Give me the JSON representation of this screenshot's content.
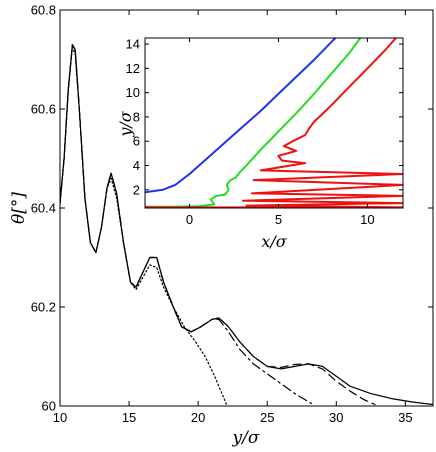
{
  "chart_data": [
    {
      "type": "line",
      "xlabel": "y/σ",
      "ylabel": "θ[°]",
      "xlim": [
        10,
        37
      ],
      "ylim": [
        60,
        60.8
      ],
      "xticks": [
        "10",
        "15",
        "20",
        "25",
        "30",
        "35"
      ],
      "yticks": [
        "60",
        "60.2",
        "60.4",
        "60.6",
        "60.8"
      ],
      "grid": false,
      "series": [
        {
          "style": "solid",
          "color": "#000000",
          "points": [
            [
              10.0,
              60.41
            ],
            [
              10.3,
              60.5
            ],
            [
              10.6,
              60.64
            ],
            [
              10.9,
              60.73
            ],
            [
              11.1,
              60.72
            ],
            [
              11.4,
              60.6
            ],
            [
              11.8,
              60.42
            ],
            [
              12.2,
              60.33
            ],
            [
              12.6,
              60.31
            ],
            [
              13.0,
              60.36
            ],
            [
              13.4,
              60.44
            ],
            [
              13.7,
              60.47
            ],
            [
              14.1,
              60.43
            ],
            [
              14.6,
              60.33
            ],
            [
              15.1,
              60.25
            ],
            [
              15.5,
              60.24
            ],
            [
              16.0,
              60.27
            ],
            [
              16.5,
              60.3
            ],
            [
              17.0,
              60.3
            ],
            [
              17.5,
              60.25
            ],
            [
              18.2,
              60.2
            ],
            [
              18.8,
              60.16
            ],
            [
              19.5,
              60.15
            ],
            [
              20.2,
              60.16
            ],
            [
              21.0,
              60.175
            ],
            [
              21.5,
              60.178
            ],
            [
              22.2,
              60.16
            ],
            [
              23.0,
              60.13
            ],
            [
              24.0,
              60.1
            ],
            [
              25.0,
              60.08
            ],
            [
              26.0,
              60.075
            ],
            [
              27.0,
              60.08
            ],
            [
              28.0,
              60.085
            ],
            [
              29.0,
              60.08
            ],
            [
              30.0,
              60.06
            ],
            [
              31.0,
              60.04
            ],
            [
              32.5,
              60.025
            ],
            [
              34.0,
              60.015
            ],
            [
              35.5,
              60.008
            ],
            [
              37.0,
              60.003
            ]
          ]
        },
        {
          "style": "dashed",
          "color": "#000000",
          "points": [
            [
              10.0,
              60.41
            ],
            [
              10.3,
              60.5
            ],
            [
              10.6,
              60.64
            ],
            [
              10.9,
              60.73
            ],
            [
              11.1,
              60.72
            ],
            [
              11.4,
              60.6
            ],
            [
              11.8,
              60.42
            ],
            [
              12.2,
              60.33
            ],
            [
              12.6,
              60.31
            ],
            [
              13.0,
              60.36
            ],
            [
              13.4,
              60.44
            ],
            [
              13.7,
              60.47
            ],
            [
              14.1,
              60.43
            ],
            [
              14.6,
              60.33
            ],
            [
              15.1,
              60.25
            ],
            [
              15.5,
              60.24
            ],
            [
              16.0,
              60.27
            ],
            [
              16.5,
              60.3
            ],
            [
              17.0,
              60.3
            ],
            [
              17.5,
              60.25
            ],
            [
              18.2,
              60.2
            ],
            [
              18.8,
              60.16
            ],
            [
              19.5,
              60.15
            ],
            [
              20.2,
              60.16
            ],
            [
              21.0,
              60.175
            ],
            [
              21.5,
              60.178
            ],
            [
              22.2,
              60.16
            ],
            [
              23.0,
              60.13
            ],
            [
              24.0,
              60.1
            ],
            [
              25.0,
              60.08
            ],
            [
              26.0,
              60.078
            ],
            [
              27.0,
              60.084
            ],
            [
              28.0,
              60.085
            ],
            [
              29.0,
              60.075
            ],
            [
              30.0,
              60.05
            ],
            [
              31.0,
              60.03
            ],
            [
              32.0,
              60.013
            ],
            [
              32.8,
              60.003
            ]
          ]
        },
        {
          "style": "dash-dot",
          "color": "#000000",
          "points": [
            [
              10.0,
              60.41
            ],
            [
              10.3,
              60.5
            ],
            [
              10.6,
              60.64
            ],
            [
              10.9,
              60.73
            ],
            [
              11.1,
              60.72
            ],
            [
              11.4,
              60.6
            ],
            [
              11.8,
              60.42
            ],
            [
              12.2,
              60.33
            ],
            [
              12.6,
              60.31
            ],
            [
              13.0,
              60.36
            ],
            [
              13.4,
              60.44
            ],
            [
              13.7,
              60.47
            ],
            [
              14.1,
              60.43
            ],
            [
              14.6,
              60.33
            ],
            [
              15.1,
              60.25
            ],
            [
              15.5,
              60.24
            ],
            [
              16.0,
              60.27
            ],
            [
              16.5,
              60.3
            ],
            [
              17.0,
              60.3
            ],
            [
              17.5,
              60.25
            ],
            [
              18.2,
              60.2
            ],
            [
              18.8,
              60.16
            ],
            [
              19.5,
              60.15
            ],
            [
              20.2,
              60.16
            ],
            [
              21.0,
              60.175
            ],
            [
              21.5,
              60.175
            ],
            [
              22.2,
              60.15
            ],
            [
              23.0,
              60.115
            ],
            [
              24.0,
              60.085
            ],
            [
              25.0,
              60.065
            ],
            [
              26.0,
              60.045
            ],
            [
              27.0,
              60.025
            ],
            [
              28.2,
              60.005
            ]
          ]
        },
        {
          "style": "dotted",
          "color": "#000000",
          "points": [
            [
              10.0,
              60.41
            ],
            [
              10.3,
              60.5
            ],
            [
              10.6,
              60.64
            ],
            [
              10.9,
              60.725
            ],
            [
              11.1,
              60.71
            ],
            [
              11.4,
              60.6
            ],
            [
              11.8,
              60.42
            ],
            [
              12.2,
              60.33
            ],
            [
              12.6,
              60.31
            ],
            [
              13.0,
              60.36
            ],
            [
              13.4,
              60.44
            ],
            [
              13.7,
              60.46
            ],
            [
              14.1,
              60.42
            ],
            [
              14.6,
              60.33
            ],
            [
              15.1,
              60.25
            ],
            [
              15.5,
              60.235
            ],
            [
              16.0,
              60.26
            ],
            [
              16.5,
              60.285
            ],
            [
              17.0,
              60.28
            ],
            [
              17.5,
              60.24
            ],
            [
              18.2,
              60.2
            ],
            [
              19.0,
              60.16
            ],
            [
              19.8,
              60.13
            ],
            [
              20.5,
              60.1
            ],
            [
              21.2,
              60.06
            ],
            [
              21.8,
              60.02
            ],
            [
              22.1,
              60.0
            ]
          ]
        }
      ]
    },
    {
      "type": "line",
      "xlabel": "x/σ",
      "ylabel": "y/σ",
      "xlim": [
        -2.5,
        12
      ],
      "ylim": [
        0.5,
        14.5
      ],
      "xticks": [
        "0",
        "5",
        "10"
      ],
      "yticks": [
        "2",
        "4",
        "6",
        "8",
        "10",
        "12",
        "14"
      ],
      "grid": false,
      "series": [
        {
          "color": "#2233ee",
          "points": [
            [
              -2.5,
              1.8
            ],
            [
              -1.5,
              2.0
            ],
            [
              -0.8,
              2.4
            ],
            [
              0.0,
              3.3
            ],
            [
              1.0,
              4.6
            ],
            [
              2.0,
              5.9
            ],
            [
              3.0,
              7.2
            ],
            [
              4.0,
              8.5
            ],
            [
              5.0,
              9.9
            ],
            [
              6.0,
              11.3
            ],
            [
              7.0,
              12.7
            ],
            [
              8.0,
              14.2
            ],
            [
              8.2,
              14.5
            ]
          ]
        },
        {
          "color": "#22dd22",
          "points": [
            [
              -2.5,
              0.6
            ],
            [
              -1.0,
              0.6
            ],
            [
              0.5,
              0.65
            ],
            [
              1.4,
              0.8
            ],
            [
              1.2,
              1.2
            ],
            [
              1.5,
              1.5
            ],
            [
              2.0,
              1.6
            ],
            [
              2.2,
              2.0
            ],
            [
              2.1,
              2.4
            ],
            [
              2.3,
              2.8
            ],
            [
              2.6,
              3.0
            ],
            [
              2.8,
              3.4
            ],
            [
              3.2,
              4.0
            ],
            [
              4.0,
              5.3
            ],
            [
              5.0,
              6.8
            ],
            [
              6.0,
              8.3
            ],
            [
              7.0,
              9.9
            ],
            [
              8.0,
              11.6
            ],
            [
              9.0,
              13.3
            ],
            [
              9.6,
              14.5
            ]
          ]
        },
        {
          "color": "#ee1111",
          "points": [
            [
              -2.5,
              0.55
            ],
            [
              12.0,
              0.55
            ],
            [
              3.2,
              0.7
            ],
            [
              12.0,
              0.9
            ],
            [
              3.0,
              1.1
            ],
            [
              12.0,
              1.5
            ],
            [
              3.5,
              1.7
            ],
            [
              12.0,
              2.4
            ],
            [
              3.6,
              2.8
            ],
            [
              12.0,
              3.3
            ],
            [
              4.0,
              3.6
            ],
            [
              6.5,
              4.2
            ],
            [
              5.2,
              4.4
            ],
            [
              5.0,
              4.8
            ],
            [
              6.0,
              5.2
            ],
            [
              5.3,
              5.6
            ],
            [
              5.8,
              6.0
            ],
            [
              6.5,
              6.5
            ],
            [
              6.7,
              7.0
            ],
            [
              7.0,
              7.6
            ],
            [
              7.3,
              8.0
            ],
            [
              8.0,
              9.0
            ],
            [
              9.0,
              10.5
            ],
            [
              10.0,
              12.0
            ],
            [
              11.0,
              13.5
            ],
            [
              11.6,
              14.5
            ]
          ]
        }
      ]
    }
  ]
}
